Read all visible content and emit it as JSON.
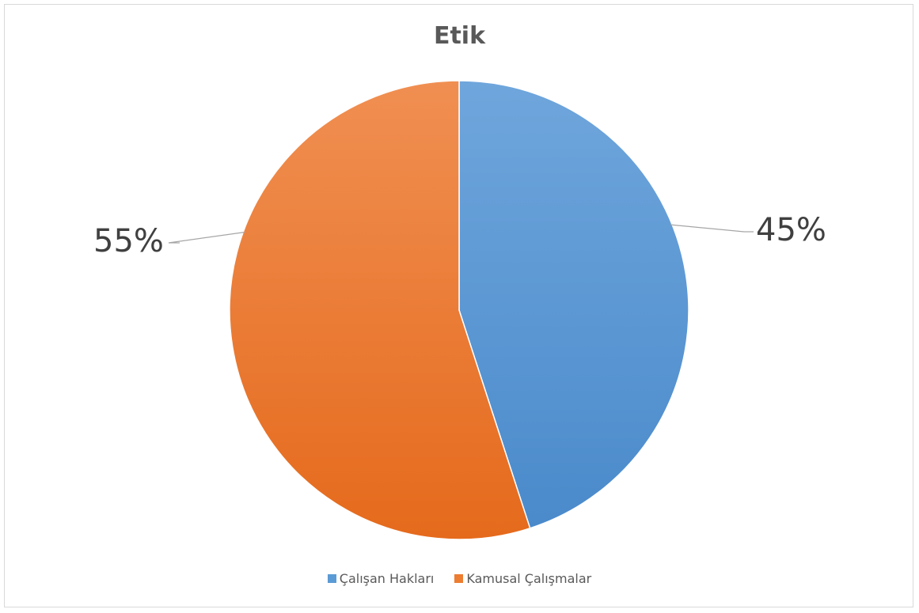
{
  "chart_data": {
    "type": "pie",
    "title": "Etik",
    "categories": [
      "Çalışan Hakları",
      "Kamusal Çalışmalar"
    ],
    "values": [
      45,
      55
    ],
    "data_labels": [
      "45%",
      "55%"
    ],
    "colors": [
      "#5B9BD5",
      "#ED7D31"
    ],
    "start_angle": "12 o'clock, clockwise",
    "legend_position": "bottom"
  }
}
